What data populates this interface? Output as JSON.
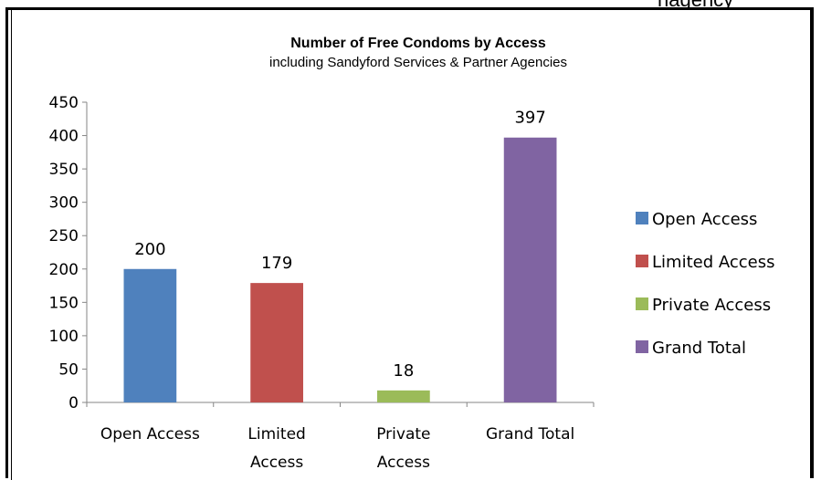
{
  "page": {
    "cut_off_header": "nagency"
  },
  "chart_data": {
    "type": "bar",
    "title": "Number of Free Condoms by Access",
    "subtitle": "including Sandyford Services & Partner Agencies",
    "categories": [
      [
        "Open Access"
      ],
      [
        "Limited",
        "Access"
      ],
      [
        "Private",
        "Access"
      ],
      [
        "Grand Total"
      ]
    ],
    "values": [
      200,
      179,
      18,
      397
    ],
    "colors": [
      "#4F81BD",
      "#C0504D",
      "#9BBB59",
      "#8064A2"
    ],
    "legend": {
      "placement": "right",
      "entries": [
        "Open Access",
        "Limited Access",
        "Private Access",
        "Grand Total"
      ]
    },
    "ylim": [
      0,
      450
    ],
    "yticks": [
      0,
      50,
      100,
      150,
      200,
      250,
      300,
      350,
      400,
      450
    ],
    "grid": false,
    "xlabel": "",
    "ylabel": ""
  }
}
